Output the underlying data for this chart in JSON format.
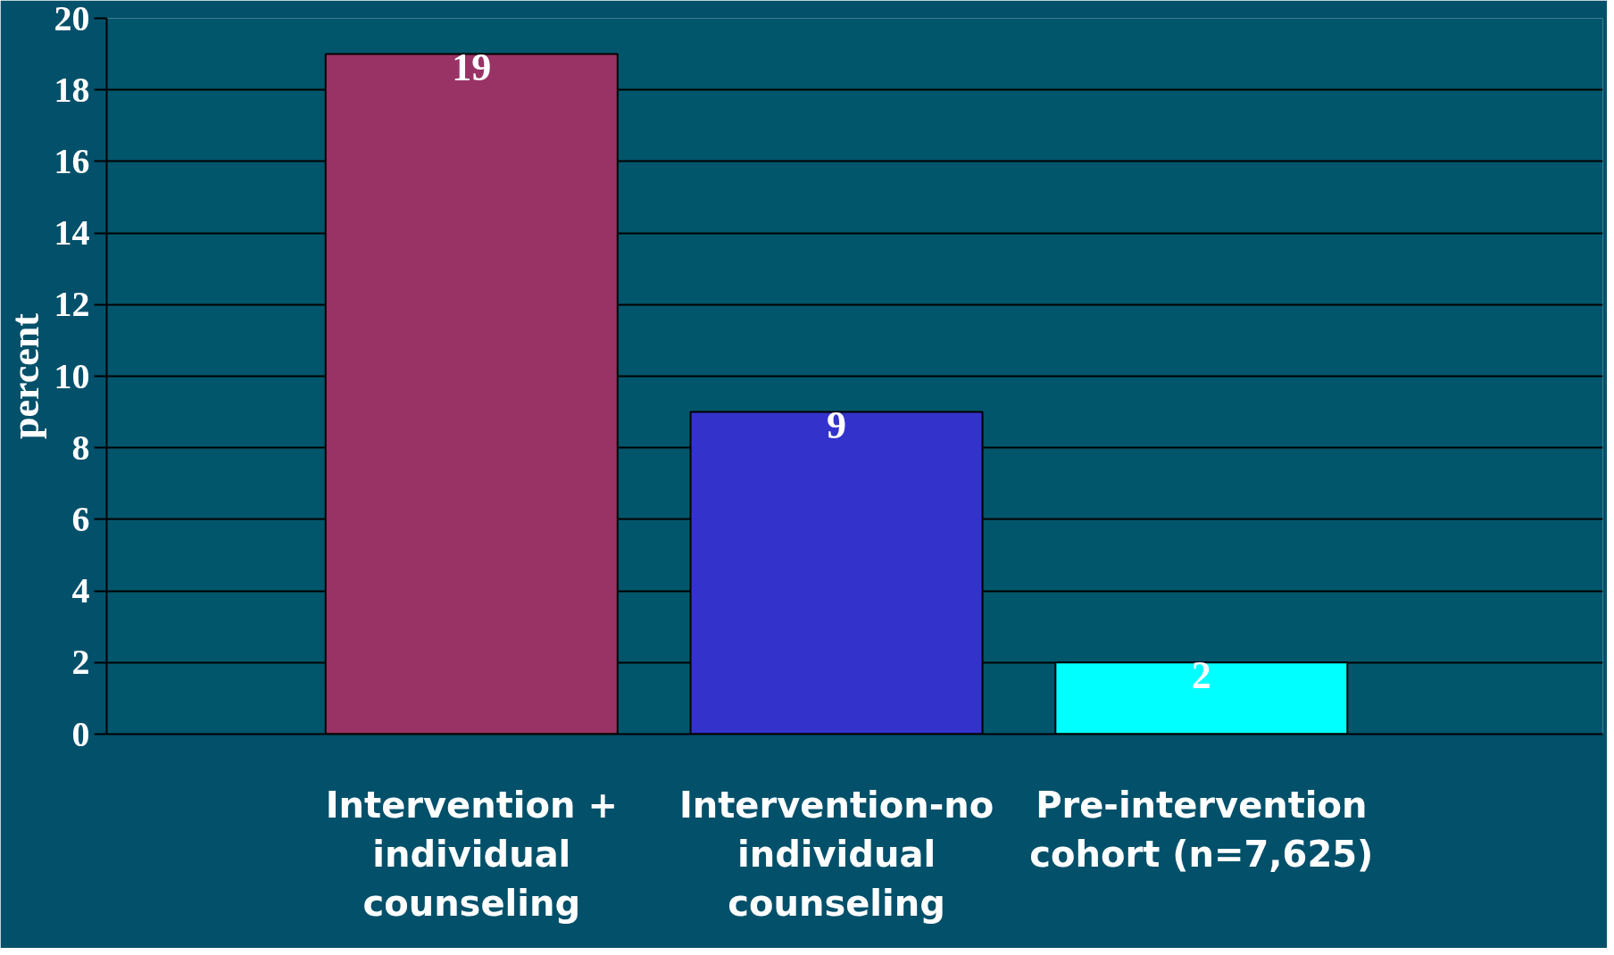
{
  "chart_data": {
    "type": "bar",
    "ylabel": "percent",
    "categories": [
      "Intervention + individual counseling",
      "Intervention-no individual counseling",
      "Pre-intervention cohort (n=7,625)"
    ],
    "values": [
      19,
      9,
      2
    ],
    "colors": [
      "#993366",
      "#3333cc",
      "#00ffff"
    ],
    "ylim": [
      0,
      20
    ],
    "yticks": [
      0,
      2,
      4,
      6,
      8,
      10,
      12,
      14,
      16,
      18,
      20
    ],
    "grid": "y",
    "data_labels": true
  }
}
